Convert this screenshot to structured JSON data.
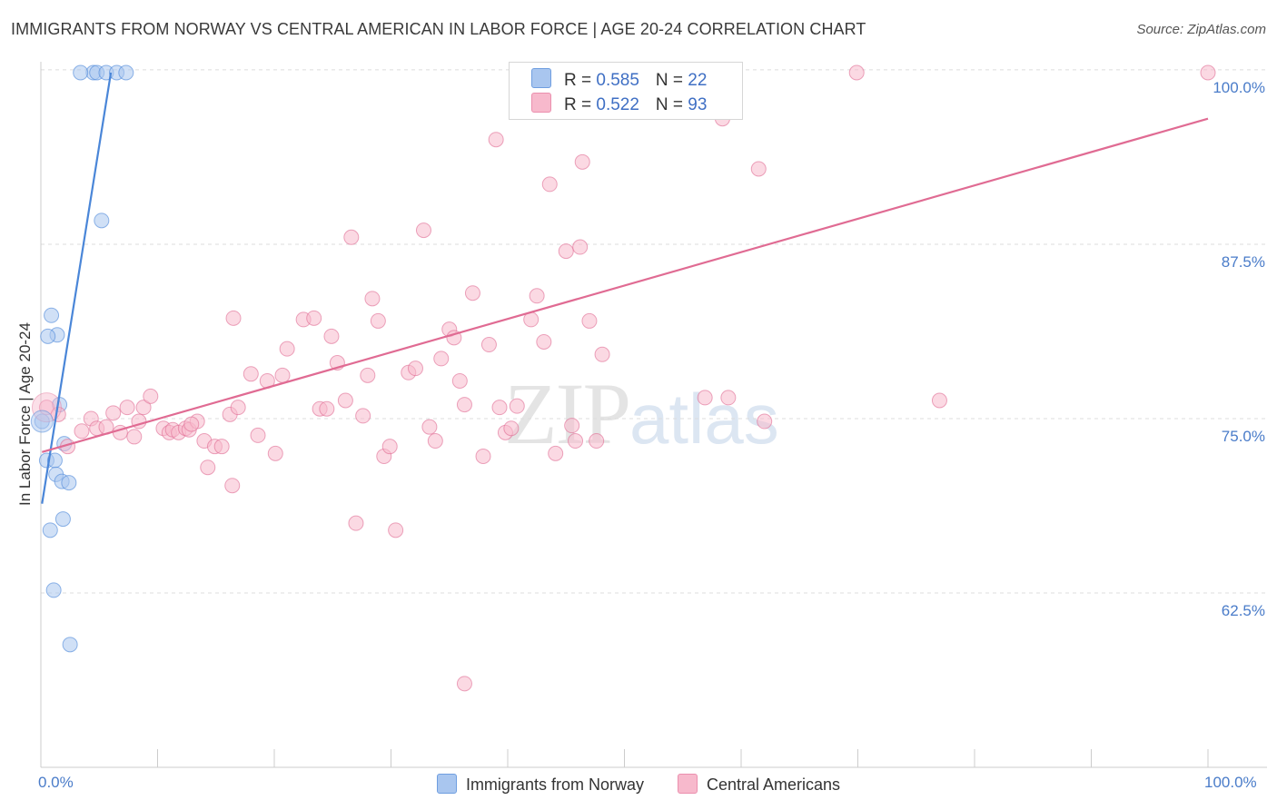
{
  "title": "IMMIGRANTS FROM NORWAY VS CENTRAL AMERICAN IN LABOR FORCE | AGE 20-24 CORRELATION CHART",
  "source": "Source: ZipAtlas.com",
  "watermark": {
    "zip": "ZIP",
    "atlas": "atlas"
  },
  "legend": {
    "rows": [
      {
        "r_label": "R = ",
        "r_value": "0.585",
        "n_label": "N = ",
        "n_value": "22",
        "color": "#a9c6ef"
      },
      {
        "r_label": "R = ",
        "r_value": "0.522",
        "n_label": "N = ",
        "n_value": "93",
        "color": "#f7b9cc"
      }
    ]
  },
  "bottom_legend": [
    {
      "label": "Immigrants from Norway",
      "color": "#a9c6ef"
    },
    {
      "label": "Central Americans",
      "color": "#f7b9cc"
    }
  ],
  "chart_data": {
    "type": "scatter",
    "title": "IMMIGRANTS FROM NORWAY VS CENTRAL AMERICAN IN LABOR FORCE | AGE 20-24 CORRELATION CHART",
    "xlabel": "",
    "ylabel": "In Labor Force | Age 20-24",
    "xlim": [
      0,
      100
    ],
    "ylim": [
      50,
      100
    ],
    "x_tick_labels": [
      "0.0%",
      "100.0%"
    ],
    "y_ticks": [
      62.5,
      75.0,
      87.5,
      100.0
    ],
    "y_tick_labels": [
      "62.5%",
      "75.0%",
      "87.5%",
      "100.0%"
    ],
    "grid": true,
    "series": [
      {
        "name": "Immigrants from Norway",
        "color": "#4a86d8",
        "fill": "#a9c6ef",
        "trend": {
          "x": [
            0.1,
            6.0
          ],
          "y": [
            68.9,
            99.8
          ]
        },
        "points": [
          {
            "x": 4.5,
            "y": 99.8
          },
          {
            "x": 3.4,
            "y": 99.8
          },
          {
            "x": 4.8,
            "y": 99.8
          },
          {
            "x": 5.6,
            "y": 99.8
          },
          {
            "x": 6.5,
            "y": 99.8
          },
          {
            "x": 7.3,
            "y": 99.8
          },
          {
            "x": 5.2,
            "y": 89.2
          },
          {
            "x": 0.9,
            "y": 82.4
          },
          {
            "x": 1.4,
            "y": 81.0
          },
          {
            "x": 0.6,
            "y": 80.9
          },
          {
            "x": 1.6,
            "y": 76.0
          },
          {
            "x": 0.1,
            "y": 74.8
          },
          {
            "x": 2.0,
            "y": 73.2
          },
          {
            "x": 0.5,
            "y": 72.0
          },
          {
            "x": 1.2,
            "y": 72.0
          },
          {
            "x": 1.3,
            "y": 71.0
          },
          {
            "x": 1.8,
            "y": 70.5
          },
          {
            "x": 2.4,
            "y": 70.4
          },
          {
            "x": 1.9,
            "y": 67.8
          },
          {
            "x": 0.8,
            "y": 67.0
          },
          {
            "x": 1.1,
            "y": 62.7
          },
          {
            "x": 2.5,
            "y": 58.8
          }
        ]
      },
      {
        "name": "Central Americans",
        "color": "#e06b93",
        "fill": "#f7b9cc",
        "trend": {
          "x": [
            0.1,
            100.0
          ],
          "y": [
            72.6,
            96.5
          ]
        },
        "points": [
          {
            "x": 0.5,
            "y": 75.8
          },
          {
            "x": 1.5,
            "y": 75.3
          },
          {
            "x": 2.3,
            "y": 73.0
          },
          {
            "x": 3.5,
            "y": 74.1
          },
          {
            "x": 4.3,
            "y": 75.0
          },
          {
            "x": 4.8,
            "y": 74.3
          },
          {
            "x": 5.6,
            "y": 74.4
          },
          {
            "x": 6.2,
            "y": 75.4
          },
          {
            "x": 7.4,
            "y": 75.8
          },
          {
            "x": 6.8,
            "y": 74.0
          },
          {
            "x": 8.0,
            "y": 73.7
          },
          {
            "x": 8.4,
            "y": 74.8
          },
          {
            "x": 8.8,
            "y": 75.8
          },
          {
            "x": 9.4,
            "y": 76.6
          },
          {
            "x": 10.5,
            "y": 74.3
          },
          {
            "x": 11.0,
            "y": 74.0
          },
          {
            "x": 11.3,
            "y": 74.2
          },
          {
            "x": 11.8,
            "y": 74.0
          },
          {
            "x": 12.4,
            "y": 74.3
          },
          {
            "x": 12.7,
            "y": 74.2
          },
          {
            "x": 13.4,
            "y": 74.8
          },
          {
            "x": 12.9,
            "y": 74.6
          },
          {
            "x": 14.0,
            "y": 73.4
          },
          {
            "x": 14.3,
            "y": 71.5
          },
          {
            "x": 14.9,
            "y": 73.0
          },
          {
            "x": 15.5,
            "y": 73.0
          },
          {
            "x": 16.2,
            "y": 75.3
          },
          {
            "x": 16.4,
            "y": 70.2
          },
          {
            "x": 16.9,
            "y": 75.8
          },
          {
            "x": 18.0,
            "y": 78.2
          },
          {
            "x": 18.6,
            "y": 73.8
          },
          {
            "x": 16.5,
            "y": 82.2
          },
          {
            "x": 19.4,
            "y": 77.7
          },
          {
            "x": 20.1,
            "y": 72.5
          },
          {
            "x": 21.1,
            "y": 80.0
          },
          {
            "x": 20.7,
            "y": 78.1
          },
          {
            "x": 22.5,
            "y": 82.1
          },
          {
            "x": 23.4,
            "y": 82.2
          },
          {
            "x": 23.9,
            "y": 75.7
          },
          {
            "x": 24.5,
            "y": 75.7
          },
          {
            "x": 24.9,
            "y": 80.9
          },
          {
            "x": 25.4,
            "y": 79.0
          },
          {
            "x": 26.1,
            "y": 76.3
          },
          {
            "x": 27.6,
            "y": 75.2
          },
          {
            "x": 26.6,
            "y": 88.0
          },
          {
            "x": 28.0,
            "y": 78.1
          },
          {
            "x": 28.4,
            "y": 83.6
          },
          {
            "x": 28.9,
            "y": 82.0
          },
          {
            "x": 29.4,
            "y": 72.3
          },
          {
            "x": 29.9,
            "y": 73.0
          },
          {
            "x": 30.4,
            "y": 67.0
          },
          {
            "x": 27.0,
            "y": 67.5
          },
          {
            "x": 31.5,
            "y": 78.3
          },
          {
            "x": 32.1,
            "y": 78.6
          },
          {
            "x": 32.8,
            "y": 88.5
          },
          {
            "x": 33.3,
            "y": 74.4
          },
          {
            "x": 33.8,
            "y": 73.4
          },
          {
            "x": 34.3,
            "y": 79.3
          },
          {
            "x": 35.0,
            "y": 81.4
          },
          {
            "x": 35.4,
            "y": 80.8
          },
          {
            "x": 35.9,
            "y": 77.7
          },
          {
            "x": 36.3,
            "y": 76.0
          },
          {
            "x": 37.0,
            "y": 84.0
          },
          {
            "x": 37.9,
            "y": 72.3
          },
          {
            "x": 38.4,
            "y": 80.3
          },
          {
            "x": 39.0,
            "y": 95.0
          },
          {
            "x": 39.3,
            "y": 75.8
          },
          {
            "x": 39.8,
            "y": 74.0
          },
          {
            "x": 40.3,
            "y": 74.3
          },
          {
            "x": 40.8,
            "y": 75.9
          },
          {
            "x": 42.0,
            "y": 82.1
          },
          {
            "x": 42.5,
            "y": 83.8
          },
          {
            "x": 43.1,
            "y": 80.5
          },
          {
            "x": 43.6,
            "y": 91.8
          },
          {
            "x": 44.1,
            "y": 72.5
          },
          {
            "x": 45.0,
            "y": 87.0
          },
          {
            "x": 45.5,
            "y": 74.5
          },
          {
            "x": 45.8,
            "y": 73.4
          },
          {
            "x": 46.2,
            "y": 87.3
          },
          {
            "x": 46.4,
            "y": 93.4
          },
          {
            "x": 47.0,
            "y": 82.0
          },
          {
            "x": 47.6,
            "y": 73.4
          },
          {
            "x": 48.1,
            "y": 79.6
          },
          {
            "x": 48.0,
            "y": 97.4
          },
          {
            "x": 56.9,
            "y": 76.5
          },
          {
            "x": 58.4,
            "y": 96.5
          },
          {
            "x": 58.9,
            "y": 76.5
          },
          {
            "x": 62.0,
            "y": 74.8
          },
          {
            "x": 69.9,
            "y": 99.8
          },
          {
            "x": 61.5,
            "y": 92.9
          },
          {
            "x": 77.0,
            "y": 76.3
          },
          {
            "x": 100.0,
            "y": 99.8
          },
          {
            "x": 36.3,
            "y": 56.0
          }
        ]
      }
    ]
  }
}
